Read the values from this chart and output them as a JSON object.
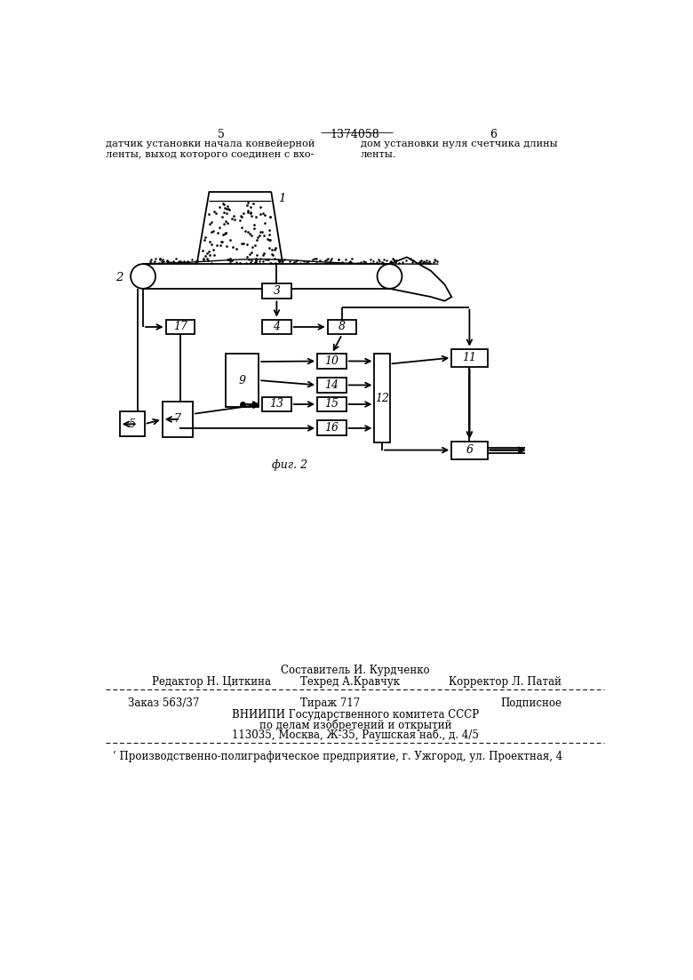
{
  "page_number_left": "5",
  "page_number_center": "1374058",
  "page_number_right": "6",
  "header_text_left": [
    "датчик установки начала конвейерной",
    "ленты, выход которого соединен с вхо-"
  ],
  "header_text_right": [
    "дом установки нуля счетчика длины",
    "ленты."
  ],
  "fig_label": "фиг. 2",
  "footer_line1_center": "Составитель И. Курдченко",
  "footer_line2_left": "Редактор Н. Циткина",
  "footer_line2_center": "Техред А.Кравчук",
  "footer_line2_right": "Корректор Л. Патай",
  "footer_line3_left": "Заказ 563/37",
  "footer_line3_center": "Тираж 717",
  "footer_line3_right": "Подписное",
  "footer_line4": "ВНИИПИ Государственного комитета СССР",
  "footer_line5": "по делам изобретений и открытий",
  "footer_line6": "113035, Москва, Ж-35, Раушская наб., д. 4/5",
  "footer_line7": "Производственно-полиграфическое предприятие, г. Ужгород, ул. Проектная, 4"
}
